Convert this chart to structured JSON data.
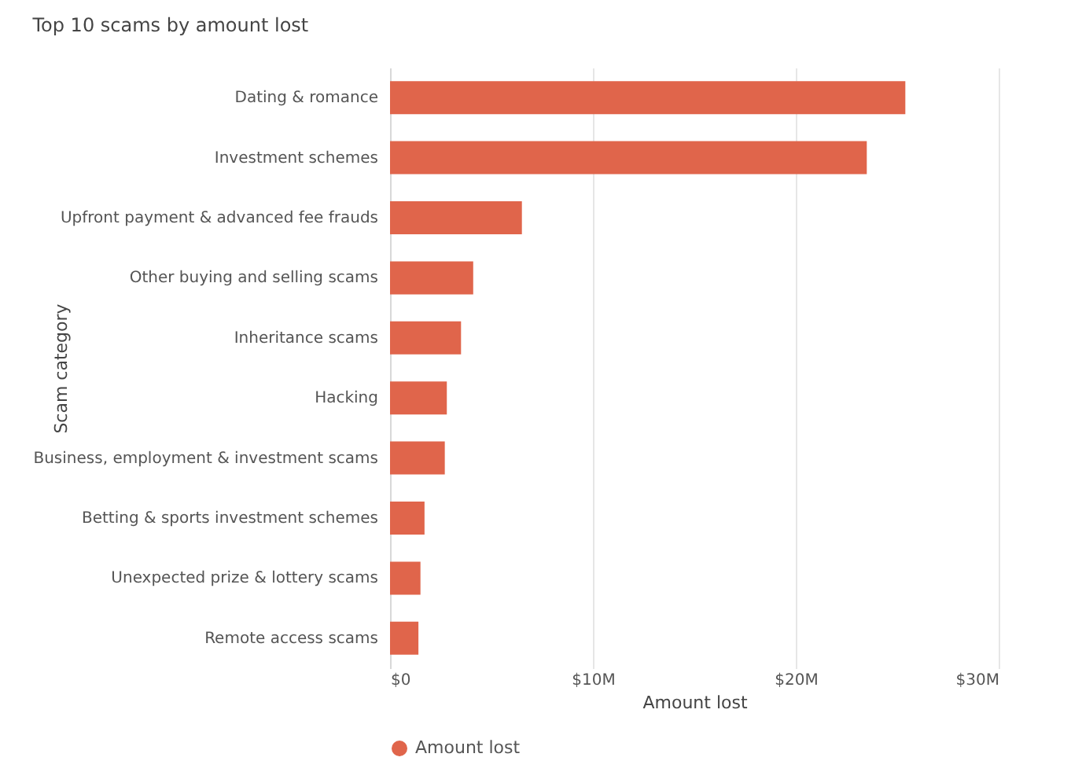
{
  "chart_data": {
    "type": "bar",
    "orientation": "horizontal",
    "title": "Top 10 scams by amount lost",
    "xlabel": "Amount lost",
    "ylabel": "Scam category",
    "categories": [
      "Dating & romance",
      "Investment schemes",
      "Upfront payment & advanced fee frauds",
      "Other buying and selling scams",
      "Inheritance scams",
      "Hacking",
      "Business, employment & investment scams",
      "Betting & sports investment schemes",
      "Unexpected prize & lottery scams",
      "Remote access scams"
    ],
    "series": [
      {
        "name": "Amount lost",
        "color": "#e0654b",
        "values": [
          25.4,
          23.5,
          6.5,
          4.1,
          3.5,
          2.8,
          2.7,
          1.7,
          1.5,
          1.4
        ]
      }
    ],
    "xlim": [
      0,
      30
    ],
    "xticks": [
      {
        "value": 0,
        "label": "$0"
      },
      {
        "value": 10,
        "label": "$10M"
      },
      {
        "value": 20,
        "label": "$20M"
      },
      {
        "value": 30,
        "label": "$30M"
      }
    ],
    "grid": "x",
    "legend": "bottom left"
  }
}
